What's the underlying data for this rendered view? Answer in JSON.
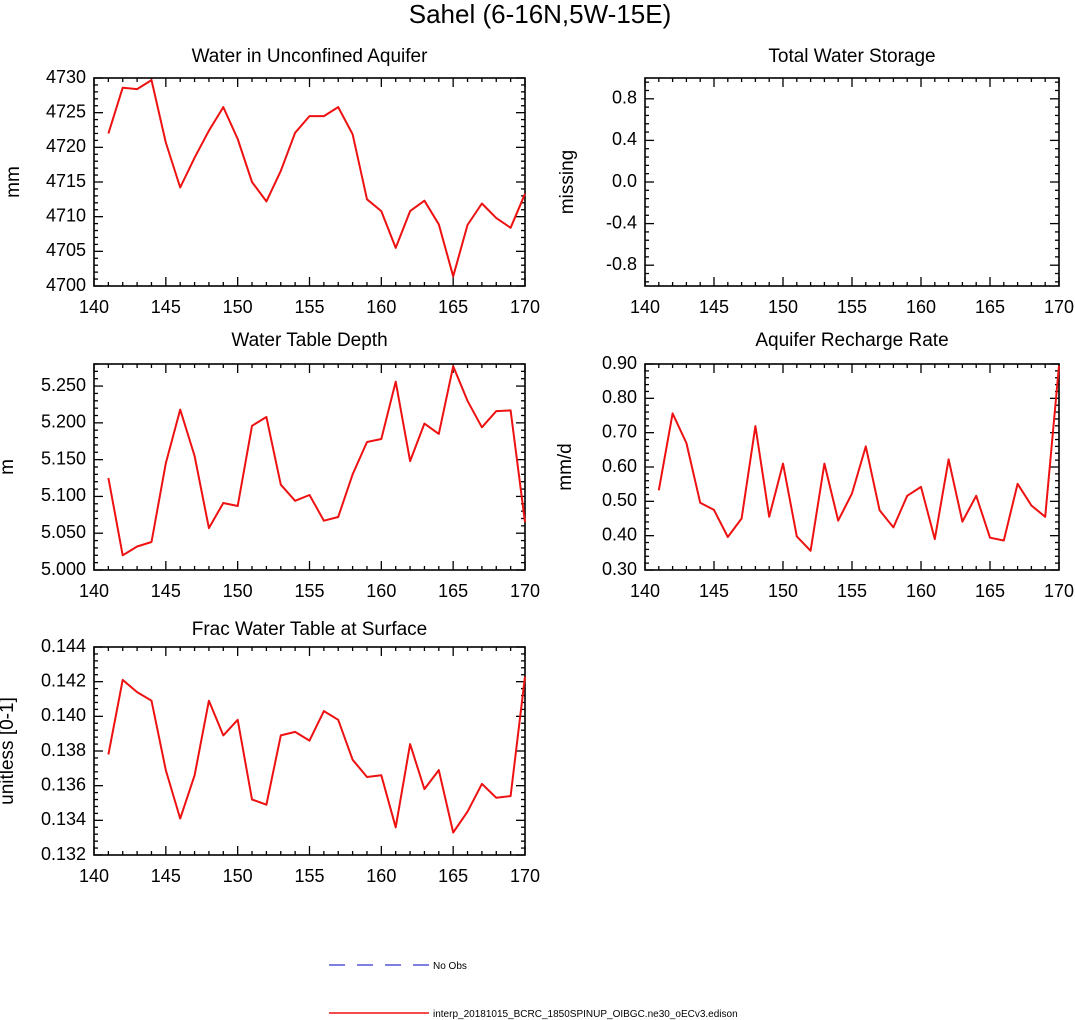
{
  "figure": {
    "title": "Sahel (6-16N,5W-15E)",
    "line_color": "#ee1111",
    "obs_color": "#3333cc"
  },
  "legend": {
    "obs_label": "No Obs",
    "model_label": "interp_20181015_BCRC_1850SPINUP_OIBGC.ne30_oECv3.edison"
  },
  "chart_data": [
    {
      "type": "line",
      "title": "Water in Unconfined Aquifer",
      "xlabel": "",
      "ylabel": "mm",
      "xlim": [
        140,
        170
      ],
      "ylim": [
        4700,
        4730
      ],
      "xticks": [
        140,
        145,
        150,
        155,
        160,
        165,
        170
      ],
      "yticks": [
        4700,
        4705,
        4710,
        4715,
        4720,
        4725,
        4730
      ],
      "ytick_labels": [
        "4700",
        "4705",
        "4710",
        "4715",
        "4720",
        "4725",
        "4730"
      ],
      "series": [
        {
          "name": "interp_20181015_BCRC_1850SPINUP_OIBGC.ne30_oECv3.edison",
          "x": [
            141,
            142,
            143,
            144,
            145,
            146,
            147,
            148,
            149,
            150,
            151,
            152,
            153,
            154,
            155,
            156,
            157,
            158,
            159,
            160,
            161,
            162,
            163,
            164,
            165,
            166,
            167,
            168,
            169,
            170
          ],
          "y": [
            4722,
            4728.6,
            4728.4,
            4729.7,
            4720.7,
            4714.2,
            4718.5,
            4722.4,
            4725.8,
            4721.2,
            4715.0,
            4712.2,
            4716.6,
            4722.1,
            4724.5,
            4724.5,
            4725.8,
            4721.9,
            4712.5,
            4710.8,
            4705.5,
            4710.8,
            4712.3,
            4708.9,
            4701.4,
            4708.8,
            4711.9,
            4709.8,
            4708.4,
            4713.3
          ]
        }
      ]
    },
    {
      "type": "line",
      "title": "Total Water Storage",
      "xlabel": "",
      "ylabel": "missing",
      "xlim": [
        140,
        170
      ],
      "ylim": [
        -1,
        1
      ],
      "xticks": [
        140,
        145,
        150,
        155,
        160,
        165,
        170
      ],
      "yticks": [
        -0.8,
        -0.4,
        0.0,
        0.4,
        0.8
      ],
      "ytick_labels": [
        "-0.8",
        "-0.4",
        "0.0",
        "0.4",
        "0.8"
      ],
      "series": []
    },
    {
      "type": "line",
      "title": "Water Table Depth",
      "xlabel": "",
      "ylabel": "m",
      "xlim": [
        140,
        170
      ],
      "ylim": [
        5.0,
        5.28
      ],
      "xticks": [
        140,
        145,
        150,
        155,
        160,
        165,
        170
      ],
      "yticks": [
        5.0,
        5.05,
        5.1,
        5.15,
        5.2,
        5.25
      ],
      "ytick_labels": [
        "5.000",
        "5.050",
        "5.100",
        "5.150",
        "5.200",
        "5.250"
      ],
      "series": [
        {
          "name": "interp_20181015_BCRC_1850SPINUP_OIBGC.ne30_oECv3.edison",
          "x": [
            141,
            142,
            143,
            144,
            145,
            146,
            147,
            148,
            149,
            150,
            151,
            152,
            153,
            154,
            155,
            156,
            157,
            158,
            159,
            160,
            161,
            162,
            163,
            164,
            165,
            166,
            167,
            168,
            169,
            170
          ],
          "y": [
            5.125,
            5.02,
            5.032,
            5.038,
            5.145,
            5.218,
            5.155,
            5.057,
            5.091,
            5.087,
            5.196,
            5.208,
            5.116,
            5.094,
            5.102,
            5.067,
            5.072,
            5.13,
            5.174,
            5.178,
            5.256,
            5.148,
            5.199,
            5.185,
            5.277,
            5.23,
            5.194,
            5.216,
            5.217,
            5.065
          ]
        }
      ]
    },
    {
      "type": "line",
      "title": "Aquifer Recharge Rate",
      "xlabel": "",
      "ylabel": "mm/d",
      "xlim": [
        140,
        170
      ],
      "ylim": [
        0.3,
        0.9
      ],
      "xticks": [
        140,
        145,
        150,
        155,
        160,
        165,
        170
      ],
      "yticks": [
        0.3,
        0.4,
        0.5,
        0.6,
        0.7,
        0.8,
        0.9
      ],
      "ytick_labels": [
        "0.30",
        "0.40",
        "0.50",
        "0.60",
        "0.70",
        "0.80",
        "0.90"
      ],
      "series": [
        {
          "name": "interp_20181015_BCRC_1850SPINUP_OIBGC.ne30_oECv3.edison",
          "x": [
            141,
            142,
            143,
            144,
            145,
            146,
            147,
            148,
            149,
            150,
            151,
            152,
            153,
            154,
            155,
            156,
            157,
            158,
            159,
            160,
            161,
            162,
            163,
            164,
            165,
            166,
            167,
            168,
            169,
            170
          ],
          "y": [
            0.532,
            0.756,
            0.67,
            0.496,
            0.475,
            0.396,
            0.45,
            0.719,
            0.455,
            0.61,
            0.398,
            0.356,
            0.61,
            0.444,
            0.523,
            0.66,
            0.474,
            0.424,
            0.516,
            0.542,
            0.39,
            0.622,
            0.441,
            0.516,
            0.394,
            0.386,
            0.551,
            0.488,
            0.455,
            0.895
          ]
        }
      ]
    },
    {
      "type": "line",
      "title": "Frac Water Table at Surface",
      "xlabel": "",
      "ylabel": "unitless [0-1]",
      "xlim": [
        140,
        170
      ],
      "ylim": [
        0.132,
        0.144
      ],
      "xticks": [
        140,
        145,
        150,
        155,
        160,
        165,
        170
      ],
      "yticks": [
        0.132,
        0.134,
        0.136,
        0.138,
        0.14,
        0.142,
        0.144
      ],
      "ytick_labels": [
        "0.132",
        "0.134",
        "0.136",
        "0.138",
        "0.140",
        "0.142",
        "0.144"
      ],
      "series": [
        {
          "name": "interp_20181015_BCRC_1850SPINUP_OIBGC.ne30_oECv3.edison",
          "x": [
            141,
            142,
            143,
            144,
            145,
            146,
            147,
            148,
            149,
            150,
            151,
            152,
            153,
            154,
            155,
            156,
            157,
            158,
            159,
            160,
            161,
            162,
            163,
            164,
            165,
            166,
            167,
            168,
            169,
            170
          ],
          "y": [
            0.1378,
            0.1421,
            0.1414,
            0.1409,
            0.1369,
            0.1341,
            0.1366,
            0.1409,
            0.1389,
            0.1398,
            0.1352,
            0.1349,
            0.1389,
            0.1391,
            0.1386,
            0.1403,
            0.1398,
            0.1375,
            0.1365,
            0.1366,
            0.1336,
            0.1384,
            0.1358,
            0.1369,
            0.1333,
            0.1345,
            0.1361,
            0.1353,
            0.1354,
            0.1423
          ]
        }
      ]
    }
  ]
}
